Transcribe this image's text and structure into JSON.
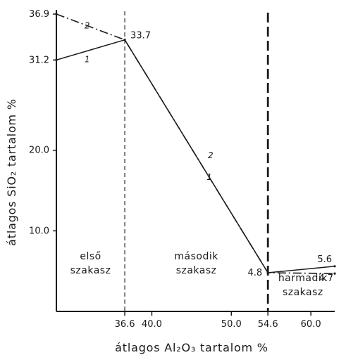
{
  "chart_data": {
    "type": "line",
    "xlabel": "átlagos Al₂O₃ tartalom %",
    "ylabel": "átlagos SiO₂ tartalom %",
    "xlim": [
      28.0,
      63.0
    ],
    "ylim": [
      0.0,
      36.9
    ],
    "xticks": [
      {
        "value": 36.6,
        "label": "36.6"
      },
      {
        "value": 40.0,
        "label": "40.0"
      },
      {
        "value": 50.0,
        "label": "50.0"
      },
      {
        "value": 54.6,
        "label": "54.6"
      },
      {
        "value": 60.0,
        "label": "60.0"
      }
    ],
    "yticks": [
      {
        "value": 36.9,
        "label": "36.9"
      },
      {
        "value": 31.2,
        "label": "31.2"
      },
      {
        "value": 20.0,
        "label": "20.0"
      },
      {
        "value": 10.0,
        "label": "10.0"
      }
    ],
    "series": [
      {
        "name": "1",
        "style": "solid",
        "x": [
          28.0,
          36.6,
          54.6,
          63.0
        ],
        "y": [
          31.2,
          33.7,
          4.8,
          5.6
        ]
      },
      {
        "name": "2",
        "style": "dashdot",
        "x": [
          28.0,
          36.6,
          54.6,
          63.0
        ],
        "y": [
          36.9,
          33.7,
          4.8,
          4.7
        ]
      }
    ],
    "point_labels": [
      {
        "x": 36.6,
        "y": 33.7,
        "text": "33.7"
      },
      {
        "x": 54.6,
        "y": 4.8,
        "text": "4.8"
      },
      {
        "x": 63.0,
        "y": 5.6,
        "text": "5.6"
      },
      {
        "x": 63.0,
        "y": 4.7,
        "text": "4.7"
      }
    ],
    "boundaries": [
      {
        "x": 36.6,
        "style": "thin-dashed"
      },
      {
        "x": 54.6,
        "style": "heavy-dashed"
      }
    ],
    "regions": [
      {
        "line1": "első",
        "line2": "szakasz",
        "x": 32.3,
        "y": 5.5
      },
      {
        "line1": "második",
        "line2": "szakasz",
        "x": 45.6,
        "y": 5.5
      },
      {
        "line1": "harmadik",
        "line2": "szakasz",
        "x": 59.0,
        "y": 2.8
      }
    ],
    "grid": false
  }
}
